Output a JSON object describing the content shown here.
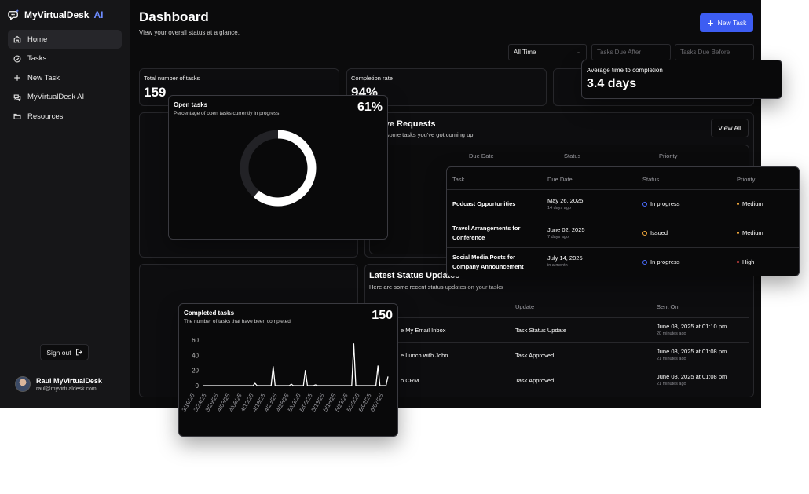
{
  "brand": {
    "name": "MyVirtualDesk",
    "suffix": "AI"
  },
  "sidebar": {
    "items": [
      {
        "label": "Home",
        "icon": "home-icon",
        "active": true
      },
      {
        "label": "Tasks",
        "icon": "check-circle-icon"
      },
      {
        "label": "New Task",
        "icon": "plus-icon"
      },
      {
        "label": "MyVirtualDesk AI",
        "icon": "chat-icon"
      },
      {
        "label": "Resources",
        "icon": "folder-icon"
      }
    ],
    "signout_label": "Sign out",
    "user": {
      "name": "Raul MyVirtualDesk",
      "email": "raul@myvirtualdesk.com"
    }
  },
  "header": {
    "title": "Dashboard",
    "subtitle": "View your overall status at a glance.",
    "new_task_label": "New Task"
  },
  "filters": {
    "range": "All Time",
    "due_after_placeholder": "Tasks Due After",
    "due_before_placeholder": "Tasks Due Before"
  },
  "stats": {
    "total": {
      "label": "Total number of tasks",
      "value": "159"
    },
    "completion": {
      "label": "Completion rate",
      "value": "94%"
    },
    "avg_time": {
      "label": "Average time to completion",
      "value": "3.4 days"
    }
  },
  "open_tasks": {
    "title": "Open tasks",
    "subtitle": "Percentage of open tasks currently in progress",
    "value": "61%",
    "fraction": 0.61
  },
  "active_requests": {
    "title_visible": "tive Requests",
    "subtitle_visible": "re some tasks you've got coming up",
    "view_all_label": "View All",
    "bg_columns": [
      "Due Date",
      "Status",
      "Priority"
    ],
    "columns": [
      "Task",
      "Due Date",
      "Status",
      "Priority"
    ],
    "rows": [
      {
        "task": "Podcast Opportunities",
        "due": "May 26, 2025",
        "due_rel": "14 days ago",
        "status": "In progress",
        "status_kind": "progress",
        "priority": "Medium",
        "priority_color": "#f0a73c"
      },
      {
        "task": "Travel Arrangements for Conference",
        "due": "June 02, 2025",
        "due_rel": "7 days ago",
        "status": "Issued",
        "status_kind": "issued",
        "priority": "Medium",
        "priority_color": "#f0a73c"
      },
      {
        "task": "Social Media Posts for Company Announcement",
        "due": "July 14, 2025",
        "due_rel": "in a month",
        "status": "In progress",
        "status_kind": "progress",
        "priority": "High",
        "priority_color": "#ef4b4b"
      }
    ]
  },
  "status_updates": {
    "title": "Latest Status Updates",
    "subtitle": "Here are some recent status updates on your tasks",
    "columns": [
      "Update",
      "Sent On"
    ],
    "rows": [
      {
        "task": "e My Email Inbox",
        "update": "Task Status Update",
        "sent": "June 08, 2025 at 01:10 pm",
        "sent_rel": "20 minutes ago"
      },
      {
        "task": "e Lunch with John",
        "update": "Task Approved",
        "sent": "June 08, 2025 at 01:08 pm",
        "sent_rel": "21 minutes ago"
      },
      {
        "task": "o CRM",
        "update": "Task Approved",
        "sent": "June 08, 2025 at 01:08 pm",
        "sent_rel": "21 minutes ago"
      }
    ]
  },
  "completed_tasks": {
    "title": "Completed tasks",
    "subtitle": "The number of tasks that have been completed",
    "value": "150"
  },
  "chart_data": {
    "type": "line",
    "title": "Completed tasks",
    "ylim": [
      0,
      60
    ],
    "yticks": [
      "0",
      "20",
      "40",
      "60"
    ],
    "xticks": [
      "3/19/25",
      "3/24/25",
      "3/29/25",
      "4/03/25",
      "4/08/25",
      "4/13/25",
      "4/18/25",
      "4/23/25",
      "4/28/25",
      "5/03/25",
      "5/08/25",
      "5/13/25",
      "5/18/25",
      "5/23/25",
      "5/28/25",
      "6/02/25",
      "6/07/25"
    ],
    "grid": false,
    "color": "#ffffff",
    "values": [
      0,
      0,
      0,
      0,
      0,
      0,
      0,
      0,
      0,
      0,
      0,
      0,
      0,
      0,
      0,
      0,
      0,
      0,
      0,
      0,
      0,
      0,
      0,
      0,
      0,
      0,
      3,
      0,
      0,
      0,
      0,
      0,
      0,
      0,
      0,
      25,
      0,
      0,
      0,
      0,
      0,
      0,
      0,
      0,
      2,
      0,
      0,
      0,
      0,
      0,
      0,
      20,
      0,
      0,
      0,
      0,
      1,
      0,
      0,
      0,
      0,
      0,
      0,
      0,
      0,
      0,
      0,
      0,
      0,
      0,
      0,
      0,
      0,
      0,
      0,
      55,
      0,
      0,
      0,
      0,
      0,
      0,
      0,
      0,
      0,
      0,
      0,
      26,
      0,
      0,
      0,
      0,
      12
    ]
  }
}
